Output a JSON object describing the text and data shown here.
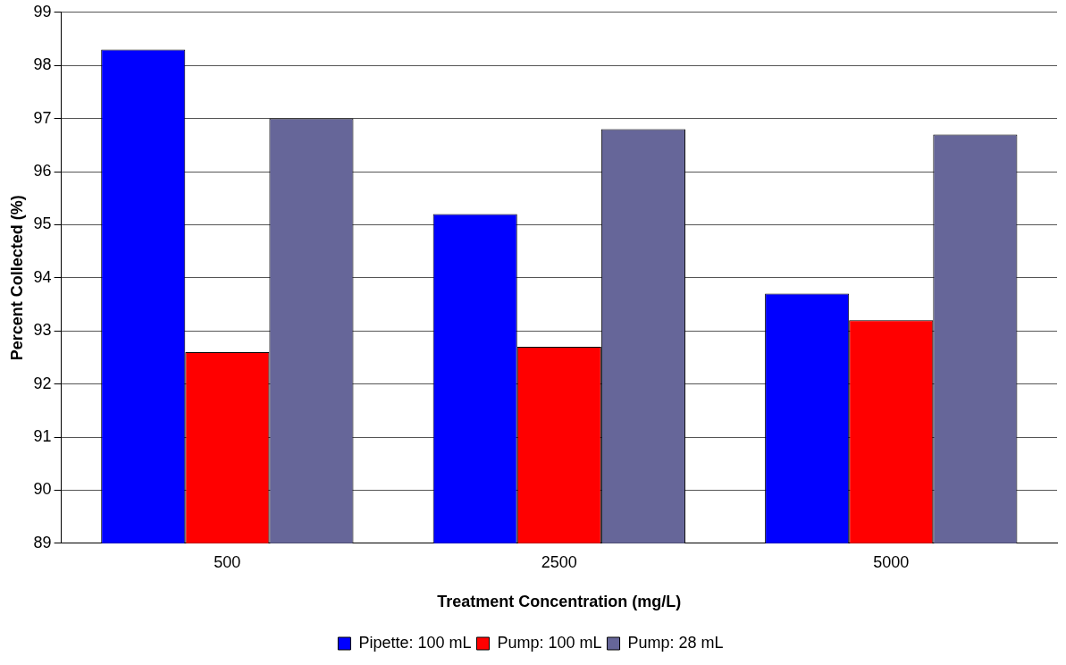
{
  "chart_data": {
    "type": "bar",
    "xlabel": "Treatment Concentration (mg/L)",
    "ylabel": "Percent Collected (%)",
    "categories": [
      "500",
      "2500",
      "5000"
    ],
    "series": [
      {
        "name": "Pipette: 100 mL",
        "color": "#0000ff",
        "values": [
          98.3,
          95.2,
          93.7
        ]
      },
      {
        "name": "Pump: 100 mL",
        "color": "#ff0000",
        "values": [
          92.6,
          92.7,
          93.2
        ]
      },
      {
        "name": "Pump: 28 mL",
        "color": "#666699",
        "values": [
          97.0,
          96.8,
          96.7
        ]
      }
    ],
    "ylim": [
      89,
      99
    ],
    "yticks": [
      89,
      90,
      91,
      92,
      93,
      94,
      95,
      96,
      97,
      98,
      99
    ],
    "grid": "y",
    "legend": "bottom"
  }
}
